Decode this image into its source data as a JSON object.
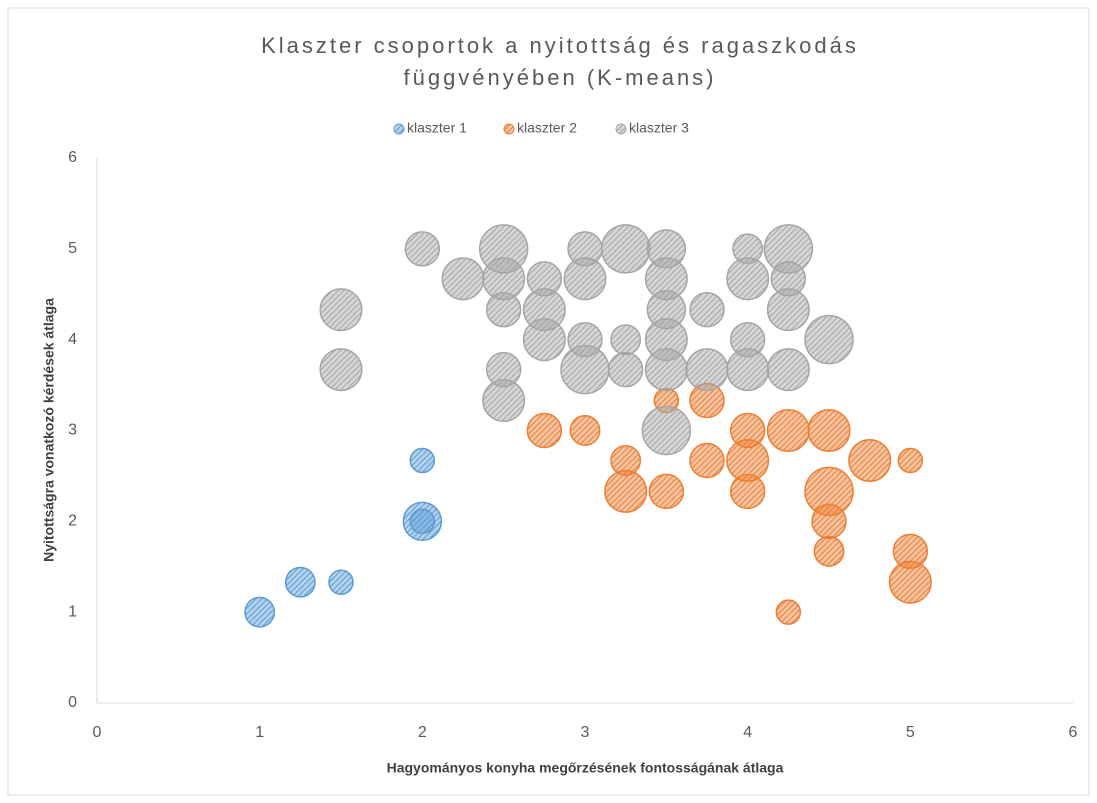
{
  "chart_data": {
    "type": "bubble",
    "title": [
      "Klaszter csoportok a nyitottság és ragaszkodás",
      "függvényében (K-means)"
    ],
    "x_label": "Hagyományos konyha megőrzésének fontosságának átlaga",
    "y_label": "Nyitottságra vonatkozó kérdések átlaga",
    "xlim": [
      0,
      6
    ],
    "ylim": [
      0,
      6
    ],
    "xticks": [
      0,
      1,
      2,
      3,
      4,
      5,
      6
    ],
    "yticks": [
      0,
      1,
      2,
      3,
      4,
      5,
      6
    ],
    "legend": "top",
    "series": [
      {
        "name": "klaszter 1",
        "color": "#5b9bd5",
        "x": [
          1,
          1.25,
          1.5,
          2,
          2,
          2
        ],
        "values": [
          1,
          1.33,
          1.33,
          2,
          2,
          2.67
        ],
        "sizes": [
          1.5,
          1.5,
          1,
          2.5,
          1,
          1
        ]
      },
      {
        "name": "klaszter 2",
        "color": "#ed7d31",
        "x": [
          2.75,
          3,
          3.25,
          3.25,
          3.5,
          3.5,
          3.75,
          3.75,
          4,
          4,
          4,
          4.25,
          4.5,
          4.5,
          4.5,
          4.5,
          4.75,
          5,
          5,
          5,
          4.25
        ],
        "values": [
          3,
          3,
          2.67,
          2.33,
          2.33,
          3.33,
          3.33,
          2.67,
          3,
          2.67,
          2.33,
          3,
          3,
          2.33,
          2,
          1.67,
          2.67,
          2.67,
          1.67,
          1.33,
          1
        ],
        "sizes": [
          2,
          1.5,
          1.5,
          3,
          2,
          1,
          2,
          2,
          2,
          3,
          2,
          3,
          3,
          4,
          2,
          1.5,
          3,
          1,
          2,
          3,
          1
        ]
      },
      {
        "name": "klaszter 3",
        "color": "#a5a5a5",
        "x": [
          1.5,
          1.5,
          2,
          2.25,
          2.5,
          2.5,
          2.5,
          2.5,
          2.5,
          2.75,
          2.75,
          2.75,
          3,
          3,
          3,
          3,
          3.25,
          3.25,
          3.25,
          3.5,
          3.5,
          3.5,
          3.5,
          3.5,
          3.5,
          3.75,
          3.75,
          4,
          4,
          4,
          4,
          4.25,
          4.25,
          4.25,
          4.25,
          4.5
        ],
        "values": [
          4.33,
          3.67,
          5,
          4.67,
          5,
          4.67,
          4.33,
          3.67,
          3.33,
          4.67,
          4.33,
          4,
          5,
          4.67,
          4,
          3.67,
          5,
          4,
          3.67,
          5,
          4.67,
          4.33,
          4,
          3.67,
          3,
          4.33,
          3.67,
          5,
          4.67,
          4,
          3.67,
          5,
          4.67,
          4.33,
          3.67,
          4
        ],
        "sizes": [
          3,
          3,
          2,
          3,
          4,
          3,
          2,
          2,
          3,
          2,
          3,
          3,
          2,
          3,
          2,
          4,
          4,
          1.5,
          2,
          2.5,
          3,
          2.5,
          3,
          3,
          4,
          2,
          3,
          1.5,
          3,
          2,
          3,
          4,
          2,
          3,
          3,
          4
        ]
      }
    ]
  }
}
